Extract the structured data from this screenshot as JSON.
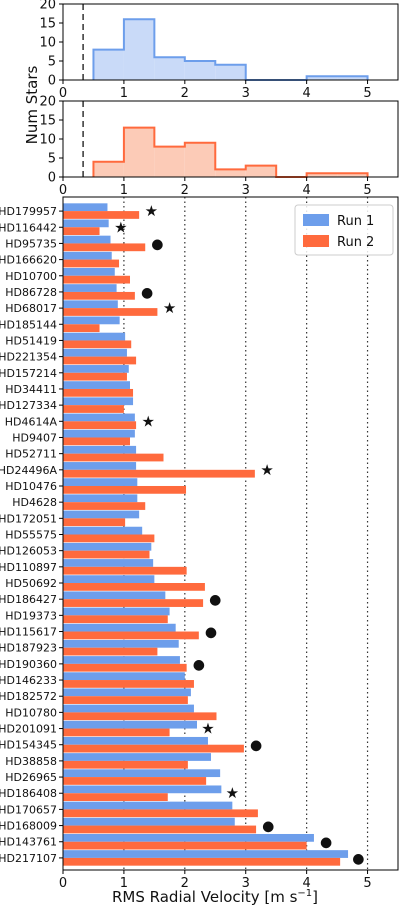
{
  "chart_data": [
    {
      "type": "histogram",
      "panel": "top",
      "series_name": "Run 1",
      "color": "#6d9eeb",
      "fill": "#c9daf8",
      "bins": [
        {
          "x0": 0.5,
          "x1": 1.0,
          "count": 8
        },
        {
          "x0": 1.0,
          "x1": 1.5,
          "count": 16
        },
        {
          "x0": 1.5,
          "x1": 2.0,
          "count": 6
        },
        {
          "x0": 2.0,
          "x1": 2.5,
          "count": 5
        },
        {
          "x0": 2.5,
          "x1": 3.0,
          "count": 4
        },
        {
          "x0": 3.0,
          "x1": 3.5,
          "count": 0
        },
        {
          "x0": 3.5,
          "x1": 4.0,
          "count": 0
        },
        {
          "x0": 4.0,
          "x1": 4.5,
          "count": 1
        },
        {
          "x0": 4.5,
          "x1": 5.0,
          "count": 1
        }
      ],
      "dashed_line_x": 0.33,
      "xlim": [
        0,
        5.5
      ],
      "ylim": [
        0,
        20
      ],
      "xticks": [
        0,
        1,
        2,
        3,
        4,
        5
      ],
      "yticks": [
        0,
        5,
        10,
        15,
        20
      ]
    },
    {
      "type": "histogram",
      "panel": "middle",
      "series_name": "Run 2",
      "color": "#ff6a3d",
      "fill": "#fccbb7",
      "bins": [
        {
          "x0": 0.5,
          "x1": 1.0,
          "count": 4
        },
        {
          "x0": 1.0,
          "x1": 1.5,
          "count": 13
        },
        {
          "x0": 1.5,
          "x1": 2.0,
          "count": 8
        },
        {
          "x0": 2.0,
          "x1": 2.5,
          "count": 9
        },
        {
          "x0": 2.5,
          "x1": 3.0,
          "count": 2
        },
        {
          "x0": 3.0,
          "x1": 3.5,
          "count": 3
        },
        {
          "x0": 3.5,
          "x1": 4.0,
          "count": 0
        },
        {
          "x0": 4.0,
          "x1": 4.5,
          "count": 1
        },
        {
          "x0": 4.5,
          "x1": 5.0,
          "count": 1
        }
      ],
      "dashed_line_x": 0.33,
      "xlim": [
        0,
        5.5
      ],
      "ylim": [
        0,
        20
      ],
      "xticks": [
        0,
        1,
        2,
        3,
        4,
        5
      ],
      "yticks": [
        0,
        5,
        10,
        15,
        20
      ]
    },
    {
      "type": "bar",
      "orientation": "horizontal",
      "panel": "bottom",
      "xlim": [
        0,
        5.5
      ],
      "xticks": [
        0,
        1,
        2,
        3,
        4,
        5
      ],
      "vertical_dotted_lines": [
        1,
        2,
        3,
        4,
        5
      ],
      "legend_position": "top-right",
      "series": [
        {
          "name": "Run 1",
          "color": "#6d9eeb"
        },
        {
          "name": "Run 2",
          "color": "#ff6a3d"
        }
      ],
      "marker_symbols": {
        "star": "★",
        "circle": "●"
      },
      "stars": [
        {
          "name": "HD179957",
          "run1": 0.73,
          "run2": 1.25,
          "marker": "star",
          "marker_x": 1.45
        },
        {
          "name": "HD116442",
          "run1": 0.75,
          "run2": 0.6,
          "marker": "star",
          "marker_x": 0.95
        },
        {
          "name": "HD95735",
          "run1": 0.78,
          "run2": 1.35,
          "marker": "circle",
          "marker_x": 1.55
        },
        {
          "name": "HD166620",
          "run1": 0.8,
          "run2": 0.92,
          "marker": "",
          "marker_x": null
        },
        {
          "name": "HD10700",
          "run1": 0.85,
          "run2": 1.1,
          "marker": "",
          "marker_x": null
        },
        {
          "name": "HD86728",
          "run1": 0.88,
          "run2": 1.18,
          "marker": "circle",
          "marker_x": 1.38
        },
        {
          "name": "HD68017",
          "run1": 0.9,
          "run2": 1.55,
          "marker": "star",
          "marker_x": 1.75
        },
        {
          "name": "HD185144",
          "run1": 0.93,
          "run2": 0.6,
          "marker": "",
          "marker_x": null
        },
        {
          "name": "HD51419",
          "run1": 1.02,
          "run2": 1.12,
          "marker": "",
          "marker_x": null
        },
        {
          "name": "HD221354",
          "run1": 1.05,
          "run2": 1.2,
          "marker": "",
          "marker_x": null
        },
        {
          "name": "HD157214",
          "run1": 1.08,
          "run2": 1.05,
          "marker": "",
          "marker_x": null
        },
        {
          "name": "HD34411",
          "run1": 1.1,
          "run2": 1.15,
          "marker": "",
          "marker_x": null
        },
        {
          "name": "HD127334",
          "run1": 1.15,
          "run2": 1.0,
          "marker": "",
          "marker_x": null
        },
        {
          "name": "HD4614A",
          "run1": 1.18,
          "run2": 1.2,
          "marker": "star",
          "marker_x": 1.4
        },
        {
          "name": "HD9407",
          "run1": 1.18,
          "run2": 1.1,
          "marker": "",
          "marker_x": null
        },
        {
          "name": "HD52711",
          "run1": 1.2,
          "run2": 1.65,
          "marker": "",
          "marker_x": null
        },
        {
          "name": "HD24496A",
          "run1": 1.2,
          "run2": 3.15,
          "marker": "star",
          "marker_x": 3.35
        },
        {
          "name": "HD10476",
          "run1": 1.22,
          "run2": 2.02,
          "marker": "",
          "marker_x": null
        },
        {
          "name": "HD4628",
          "run1": 1.22,
          "run2": 1.35,
          "marker": "",
          "marker_x": null
        },
        {
          "name": "HD172051",
          "run1": 1.25,
          "run2": 1.02,
          "marker": "",
          "marker_x": null
        },
        {
          "name": "HD55575",
          "run1": 1.3,
          "run2": 1.5,
          "marker": "",
          "marker_x": null
        },
        {
          "name": "HD126053",
          "run1": 1.45,
          "run2": 1.42,
          "marker": "",
          "marker_x": null
        },
        {
          "name": "HD110897",
          "run1": 1.48,
          "run2": 2.03,
          "marker": "",
          "marker_x": null
        },
        {
          "name": "HD50692",
          "run1": 1.5,
          "run2": 2.33,
          "marker": "",
          "marker_x": null
        },
        {
          "name": "HD186427",
          "run1": 1.68,
          "run2": 2.3,
          "marker": "circle",
          "marker_x": 2.5
        },
        {
          "name": "HD19373",
          "run1": 1.75,
          "run2": 1.72,
          "marker": "",
          "marker_x": null
        },
        {
          "name": "HD115617",
          "run1": 1.85,
          "run2": 2.23,
          "marker": "circle",
          "marker_x": 2.43
        },
        {
          "name": "HD187923",
          "run1": 1.9,
          "run2": 1.55,
          "marker": "",
          "marker_x": null
        },
        {
          "name": "HD190360",
          "run1": 1.92,
          "run2": 2.03,
          "marker": "circle",
          "marker_x": 2.23
        },
        {
          "name": "HD146233",
          "run1": 2.0,
          "run2": 2.15,
          "marker": "",
          "marker_x": null
        },
        {
          "name": "HD182572",
          "run1": 2.1,
          "run2": 2.05,
          "marker": "",
          "marker_x": null
        },
        {
          "name": "HD10780",
          "run1": 2.15,
          "run2": 2.52,
          "marker": "",
          "marker_x": null
        },
        {
          "name": "HD201091",
          "run1": 2.2,
          "run2": 1.75,
          "marker": "star",
          "marker_x": 2.38
        },
        {
          "name": "HD154345",
          "run1": 2.38,
          "run2": 2.97,
          "marker": "circle",
          "marker_x": 3.17
        },
        {
          "name": "HD38858",
          "run1": 2.43,
          "run2": 2.05,
          "marker": "",
          "marker_x": null
        },
        {
          "name": "HD26965",
          "run1": 2.58,
          "run2": 2.35,
          "marker": "",
          "marker_x": null
        },
        {
          "name": "HD186408",
          "run1": 2.6,
          "run2": 1.72,
          "marker": "star",
          "marker_x": 2.78
        },
        {
          "name": "HD170657",
          "run1": 2.78,
          "run2": 3.2,
          "marker": "",
          "marker_x": null
        },
        {
          "name": "HD168009",
          "run1": 2.82,
          "run2": 3.17,
          "marker": "circle",
          "marker_x": 3.37
        },
        {
          "name": "HD143761",
          "run1": 4.12,
          "run2": 4.0,
          "marker": "circle",
          "marker_x": 4.32
        },
        {
          "name": "HD217107",
          "run1": 4.68,
          "run2": 4.55,
          "marker": "circle",
          "marker_x": 4.85
        }
      ]
    }
  ],
  "labels": {
    "ylabel_hist": "Num Stars",
    "xlabel_main": "RMS Radial Velocity [m s",
    "xlabel_unit_exp": "−1",
    "xlabel_close": "]"
  }
}
